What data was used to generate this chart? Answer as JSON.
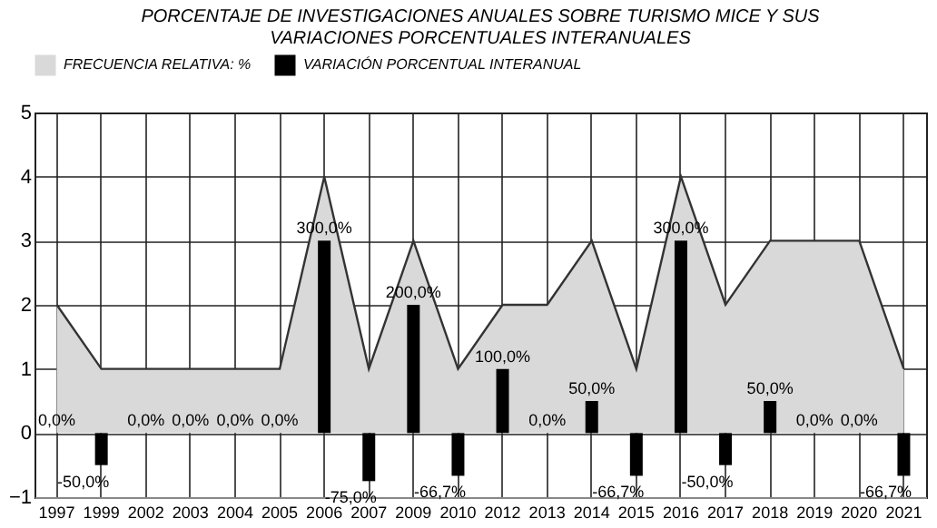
{
  "chart_data": {
    "type": "bar",
    "title": "PORCENTAJE  DE INVESTIGACIONES ANUALES SOBRE TURISMO  MICE  Y SUS VARIACIONES PORCENTUALES  INTERANUALES",
    "categories": [
      "1997",
      "1999",
      "2002",
      "2003",
      "2004",
      "2005",
      "2006",
      "2007",
      "2009",
      "2010",
      "2012",
      "2013",
      "2014",
      "2015",
      "2016",
      "2017",
      "2018",
      "2019",
      "2020",
      "2021"
    ],
    "series": [
      {
        "name": "FRECUENCIA RELATIVA: %",
        "type": "area",
        "color": "#d9d9d9",
        "values": [
          2,
          1,
          1,
          1,
          1,
          1,
          4,
          1,
          3,
          1,
          2,
          2,
          3,
          1,
          4,
          2,
          3,
          3,
          3,
          1
        ]
      },
      {
        "name": "VARIACIÓN PORCENTUAL INTERANUAL",
        "color": "#000000",
        "values": [
          0,
          -0.5,
          0,
          0,
          0,
          0,
          3,
          -0.75,
          2,
          -0.667,
          1,
          0,
          0.5,
          -0.667,
          3,
          -0.5,
          0.5,
          0,
          0,
          -0.667
        ],
        "value_labels": [
          "0,0%",
          "-50,0%",
          "0,0%",
          "0,0%",
          "0,0%",
          "0,0%",
          "300,0%",
          "-75,0%",
          "200,0%",
          "-66,7%",
          "100,0%",
          "0,0%",
          "50,0%",
          "-66,7%",
          "300,0%",
          "-50,0%",
          "50,0%",
          "0,0%",
          "0,0%",
          "-66,7%"
        ]
      }
    ],
    "ylim": [
      -1,
      5
    ],
    "yticks": [
      -1,
      0,
      1,
      2,
      3,
      4,
      5
    ],
    "grid": true,
    "legend": "top"
  }
}
